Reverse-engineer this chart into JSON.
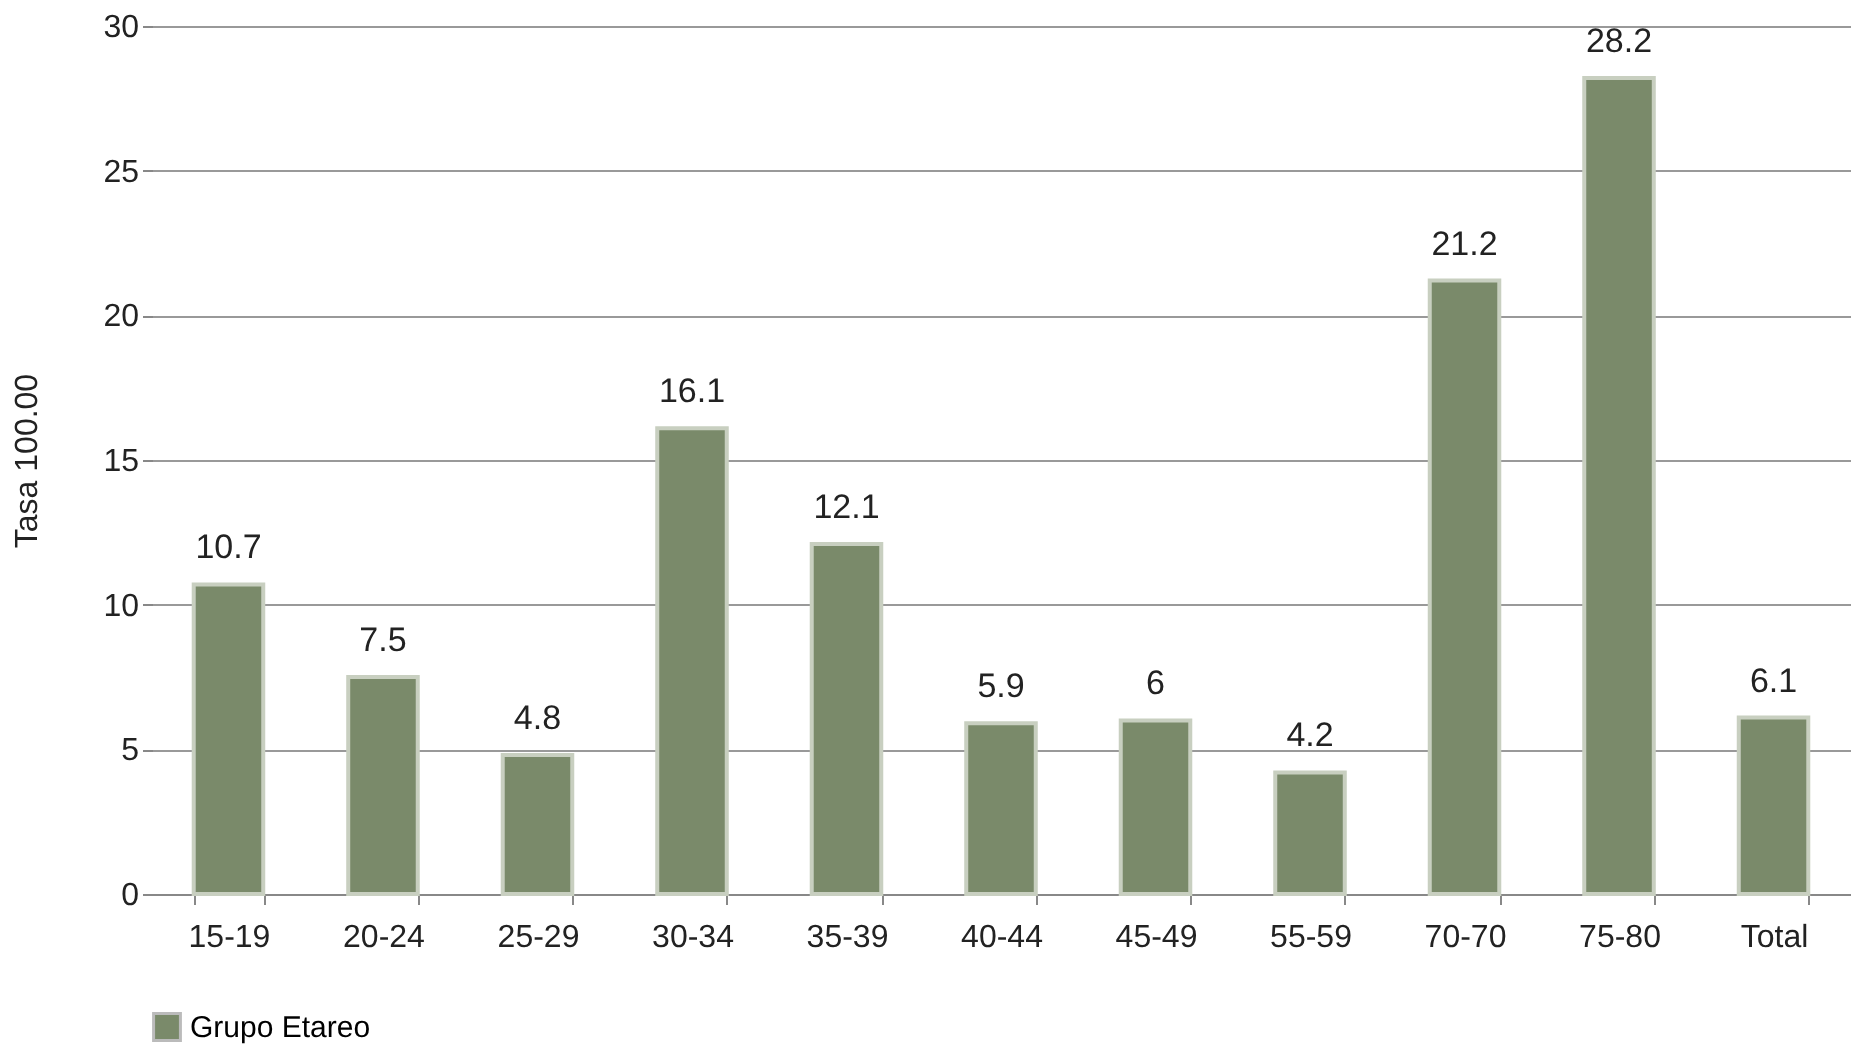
{
  "chart_data": {
    "type": "bar",
    "ylabel": "Tasa 100.00",
    "categories": [
      "15-19",
      "20-24",
      "25-29",
      "30-34",
      "35-39",
      "40-44",
      "45-49",
      "55-59",
      "70-70",
      "75-80",
      "Total"
    ],
    "series": [
      {
        "name": "Grupo Etareo",
        "color": "#7a8a6a",
        "values": [
          10.7,
          7.5,
          4.8,
          16.1,
          12.1,
          5.9,
          6,
          4.2,
          21.2,
          28.2,
          6.1
        ]
      }
    ],
    "ylim": [
      0,
      30
    ],
    "yticks": [
      0,
      5,
      10,
      15,
      20,
      25,
      30
    ],
    "grid": "y",
    "legend": "bottom",
    "data_labels": true
  }
}
